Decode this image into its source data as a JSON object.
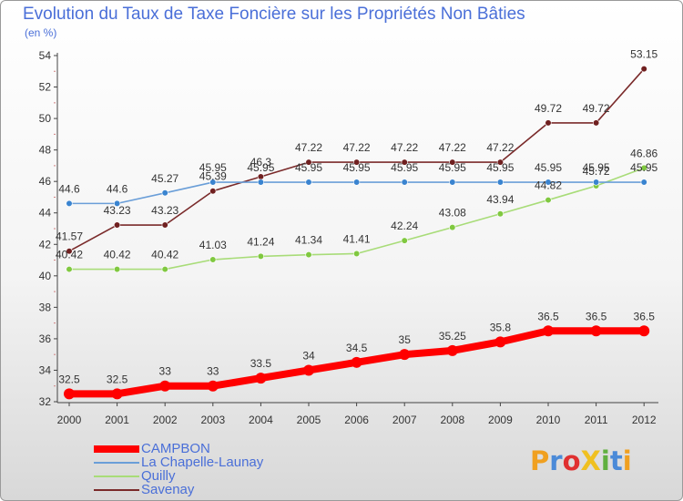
{
  "title": "Evolution du Taux de Taxe Foncière sur les Propriétés Non Bâties",
  "subtitle": "(en %)",
  "logo": {
    "text": "ProXiti",
    "letters": [
      {
        "ch": "P",
        "color": "#f0a020"
      },
      {
        "ch": "r",
        "color": "#4a8ad8"
      },
      {
        "ch": "o",
        "color": "#e03030"
      },
      {
        "ch": "X",
        "color": "#f0c020"
      },
      {
        "ch": "i",
        "color": "#60b040"
      },
      {
        "ch": "t",
        "color": "#4a8ad8"
      },
      {
        "ch": "i",
        "color": "#f0a020"
      }
    ]
  },
  "chart_data": {
    "type": "line",
    "title": "Evolution du Taux de Taxe Foncière sur les Propriétés Non Bâties",
    "ylabel": "(en %)",
    "x": [
      "2000",
      "2001",
      "2002",
      "2003",
      "2004",
      "2005",
      "2006",
      "2007",
      "2008",
      "2009",
      "2010",
      "2011",
      "2012"
    ],
    "ylim": [
      32,
      54
    ],
    "yticks": [
      "32",
      "34",
      "36",
      "38",
      "40",
      "42",
      "44",
      "46",
      "48",
      "50",
      "52",
      "54"
    ],
    "grid": false,
    "legend_position": "bottom-left",
    "series": [
      {
        "name": "CAMPBON",
        "color": "#ff0000",
        "values": [
          32.5,
          32.5,
          33,
          33,
          33.5,
          34,
          34.5,
          35,
          35.25,
          35.8,
          36.5,
          36.5,
          36.5
        ],
        "labels": [
          "32.5",
          "32.5",
          "33",
          "33",
          "33.5",
          "34",
          "34.5",
          "35",
          "35.25",
          "35.8",
          "36.5",
          "36.5",
          "36.5"
        ]
      },
      {
        "name": "La Chapelle-Launay",
        "color": "#6a9ed8",
        "marker": "#3a84d0",
        "values": [
          44.6,
          44.6,
          45.27,
          45.95,
          45.95,
          45.95,
          45.95,
          45.95,
          45.95,
          45.95,
          45.95,
          45.95,
          45.95
        ],
        "labels": [
          "44.6",
          "44.6",
          "45.27",
          "45.95",
          "45.95",
          "45.95",
          "45.95",
          "45.95",
          "45.95",
          "45.95",
          "45.95",
          "45.95",
          "45.95"
        ]
      },
      {
        "name": "Quilly",
        "color": "#a8dc78",
        "marker": "#80c840",
        "values": [
          40.42,
          40.42,
          40.42,
          41.03,
          41.24,
          41.34,
          41.41,
          42.24,
          43.08,
          43.94,
          44.82,
          45.72,
          46.86
        ],
        "labels": [
          "40.42",
          "40.42",
          "40.42",
          "41.03",
          "41.24",
          "41.34",
          "41.41",
          "42.24",
          "43.08",
          "43.94",
          "44.82",
          "45.72",
          "46.86"
        ]
      },
      {
        "name": "Savenay",
        "color": "#7a2a2a",
        "marker": "#702020",
        "values": [
          41.57,
          43.23,
          43.23,
          45.39,
          46.3,
          47.22,
          47.22,
          47.22,
          47.22,
          47.22,
          49.72,
          49.72,
          53.15
        ],
        "labels": [
          "41.57",
          "43.23",
          "43.23",
          "45.39",
          "46.3",
          "47.22",
          "47.22",
          "47.22",
          "47.22",
          "47.22",
          "49.72",
          "49.72",
          "53.15"
        ]
      }
    ]
  }
}
